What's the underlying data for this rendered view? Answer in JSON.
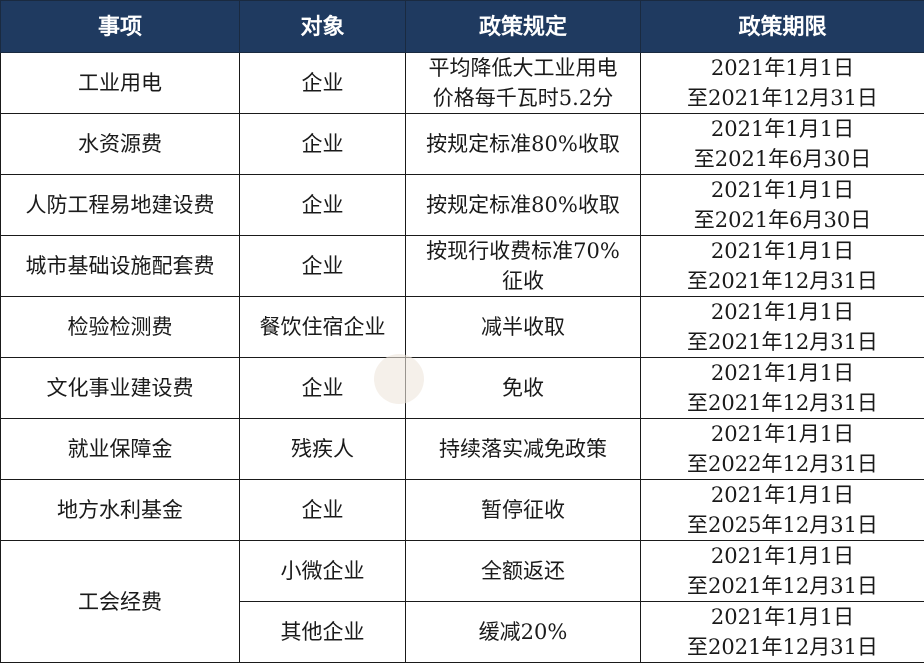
{
  "colors": {
    "header_bg": "#1f3a60",
    "header_text": "#ffffff",
    "border": "#1a1a1a"
  },
  "headers": [
    "事项",
    "对象",
    "政策规定",
    "政策期限"
  ],
  "rows": [
    {
      "item": "工业用电",
      "target": "企业",
      "policy": [
        "平均降低大工业用电",
        "价格每千瓦时5.2分"
      ],
      "period": [
        "2021年1月1日",
        "至2021年12月31日"
      ]
    },
    {
      "item": "水资源费",
      "target": "企业",
      "policy": [
        "按规定标准80%收取"
      ],
      "period": [
        "2021年1月1日",
        "至2021年6月30日"
      ]
    },
    {
      "item": "人防工程易地建设费",
      "target": "企业",
      "policy": [
        "按规定标准80%收取"
      ],
      "period": [
        "2021年1月1日",
        "至2021年6月30日"
      ]
    },
    {
      "item": "城市基础设施配套费",
      "target": "企业",
      "policy": [
        "按现行收费标准70%",
        "征收"
      ],
      "period": [
        "2021年1月1日",
        "至2021年12月31日"
      ]
    },
    {
      "item": "检验检测费",
      "target": "餐饮住宿企业",
      "policy": [
        "减半收取"
      ],
      "period": [
        "2021年1月1日",
        "至2021年12月31日"
      ]
    },
    {
      "item": "文化事业建设费",
      "target": "企业",
      "policy": [
        "免收"
      ],
      "period": [
        "2021年1月1日",
        "至2021年12月31日"
      ]
    },
    {
      "item": "就业保障金",
      "target": "残疾人",
      "policy": [
        "持续落实减免政策"
      ],
      "period": [
        "2021年1月1日",
        "至2022年12月31日"
      ]
    },
    {
      "item": "地方水利基金",
      "target": "企业",
      "policy": [
        "暂停征收"
      ],
      "period": [
        "2021年1月1日",
        "至2025年12月31日"
      ]
    },
    {
      "item": "工会经费",
      "target": "小微企业",
      "policy": [
        "全额返还"
      ],
      "period": [
        "2021年1月1日",
        "至2021年12月31日"
      ]
    },
    {
      "item": "",
      "target": "其他企业",
      "policy": [
        "缓减20%"
      ],
      "period": [
        "2021年1月1日",
        "至2021年12月31日"
      ]
    }
  ]
}
